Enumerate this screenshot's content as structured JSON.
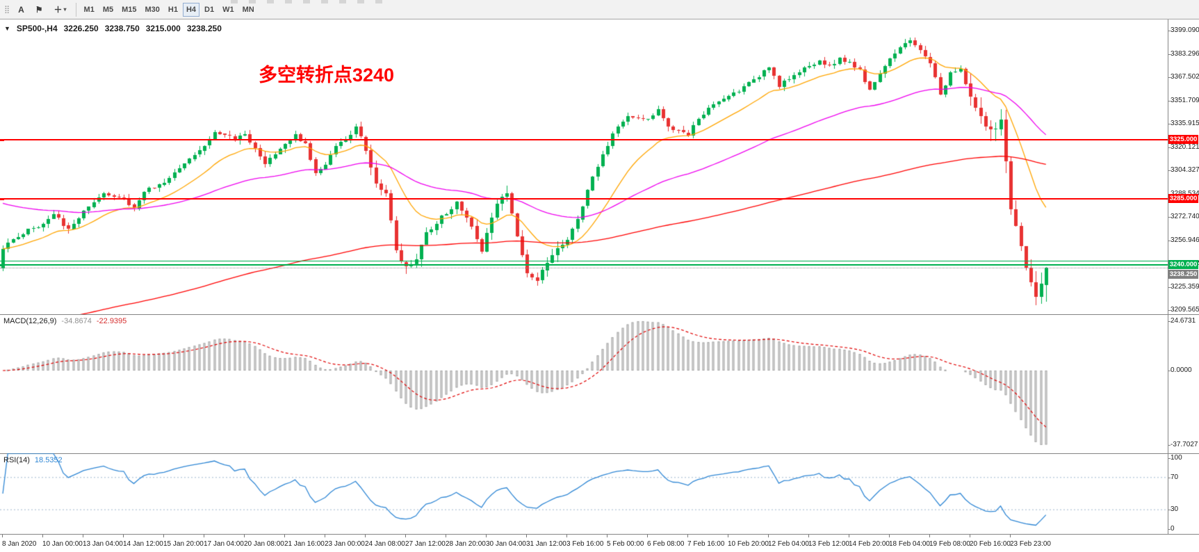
{
  "toolbar": {
    "text_tool": "A",
    "flag_icon": "flag",
    "cursor_icon": "crosshair",
    "timeframes": [
      "M1",
      "M5",
      "M15",
      "M30",
      "H1",
      "H4",
      "D1",
      "W1",
      "MN"
    ],
    "active_timeframe": "H4"
  },
  "main_panel": {
    "collapse_icon": "▼",
    "title": "SP500-,H4",
    "open": "3226.250",
    "high": "3238.750",
    "low": "3215.000",
    "close": "3238.250",
    "annotation": "多空转折点3240",
    "annotation_color": "#ff0000"
  },
  "price_axis": [
    "3399.090",
    "3383.296",
    "3367.502",
    "3351.709",
    "3335.915",
    "3320.121",
    "3304.327",
    "3288.534",
    "3272.740",
    "3256.946",
    "3241.152",
    "3225.359",
    "3209.565"
  ],
  "macd_panel": {
    "name": "MACD(12,26,9)",
    "main_value": "-34.8674",
    "signal_value": "-22.9395",
    "axis": [
      {
        "v": 24.6731,
        "label": "24.6731"
      },
      {
        "v": 0,
        "label": "0.0000"
      },
      {
        "v": -37.7027,
        "label": "-37.7027"
      }
    ]
  },
  "rsi_panel": {
    "name": "RSI(14)",
    "value": "18.5352",
    "axis": [
      {
        "v": 100,
        "label": "100"
      },
      {
        "v": 70,
        "label": "70"
      },
      {
        "v": 30,
        "label": "30"
      },
      {
        "v": 0,
        "label": "0"
      }
    ],
    "levels": [
      70,
      30
    ]
  },
  "time_axis": [
    "8 Jan 2020",
    "10 Jan 00:00",
    "13 Jan 04:00",
    "14 Jan 12:00",
    "15 Jan 20:00",
    "17 Jan 04:00",
    "20 Jan 08:00",
    "21 Jan 16:00",
    "23 Jan 00:00",
    "24 Jan 08:00",
    "27 Jan 12:00",
    "28 Jan 20:00",
    "30 Jan 04:00",
    "31 Jan 12:00",
    "3 Feb 16:00",
    "5 Feb 00:00",
    "6 Feb 08:00",
    "7 Feb 16:00",
    "10 Feb 20:00",
    "12 Feb 04:00",
    "13 Feb 12:00",
    "14 Feb 20:00",
    "18 Feb 04:00",
    "19 Feb 08:00",
    "20 Feb 16:00",
    "23 Feb 23:00"
  ],
  "chart_data": {
    "type": "candlestick",
    "symbol": "SP500-",
    "timeframe": "H4",
    "bars": 208,
    "bars_per_x_label": 8,
    "y_axis": {
      "top": 3399.09,
      "bottom": 3209.565
    },
    "last_bar": {
      "o": 3226.25,
      "h": 3238.75,
      "l": 3215.0,
      "c": 3238.25
    },
    "price_path": [
      [
        0,
        3252
      ],
      [
        4,
        3262
      ],
      [
        8,
        3268
      ],
      [
        10,
        3274
      ],
      [
        13,
        3265
      ],
      [
        16,
        3276
      ],
      [
        20,
        3288
      ],
      [
        24,
        3286
      ],
      [
        26,
        3278
      ],
      [
        28,
        3290
      ],
      [
        32,
        3296
      ],
      [
        36,
        3310
      ],
      [
        40,
        3322
      ],
      [
        42,
        3330
      ],
      [
        46,
        3326
      ],
      [
        48,
        3328
      ],
      [
        50,
        3320
      ],
      [
        52,
        3308
      ],
      [
        56,
        3322
      ],
      [
        58,
        3328
      ],
      [
        60,
        3322
      ],
      [
        62,
        3302
      ],
      [
        64,
        3308
      ],
      [
        66,
        3320
      ],
      [
        68,
        3326
      ],
      [
        70,
        3333
      ],
      [
        72,
        3318
      ],
      [
        74,
        3295
      ],
      [
        76,
        3288
      ],
      [
        78,
        3250
      ],
      [
        80,
        3238
      ],
      [
        82,
        3246
      ],
      [
        84,
        3262
      ],
      [
        88,
        3276
      ],
      [
        90,
        3284
      ],
      [
        92,
        3273
      ],
      [
        95,
        3250
      ],
      [
        98,
        3283
      ],
      [
        100,
        3287
      ],
      [
        102,
        3260
      ],
      [
        104,
        3235
      ],
      [
        106,
        3228
      ],
      [
        108,
        3242
      ],
      [
        112,
        3258
      ],
      [
        114,
        3272
      ],
      [
        116,
        3290
      ],
      [
        118,
        3308
      ],
      [
        120,
        3322
      ],
      [
        122,
        3334
      ],
      [
        124,
        3340
      ],
      [
        128,
        3338
      ],
      [
        130,
        3346
      ],
      [
        132,
        3334
      ],
      [
        136,
        3328
      ],
      [
        138,
        3340
      ],
      [
        142,
        3352
      ],
      [
        144,
        3355
      ],
      [
        146,
        3358
      ],
      [
        150,
        3368
      ],
      [
        152,
        3375
      ],
      [
        154,
        3362
      ],
      [
        158,
        3372
      ],
      [
        160,
        3376
      ],
      [
        162,
        3378
      ],
      [
        164,
        3375
      ],
      [
        166,
        3380
      ],
      [
        168,
        3378
      ],
      [
        170,
        3372
      ],
      [
        172,
        3358
      ],
      [
        174,
        3370
      ],
      [
        176,
        3380
      ],
      [
        178,
        3388
      ],
      [
        180,
        3392
      ],
      [
        182,
        3386
      ],
      [
        184,
        3378
      ],
      [
        186,
        3356
      ],
      [
        188,
        3370
      ],
      [
        190,
        3373
      ],
      [
        192,
        3355
      ],
      [
        194,
        3340
      ],
      [
        196,
        3332
      ],
      [
        198,
        3337
      ],
      [
        200,
        3278
      ],
      [
        202,
        3252
      ],
      [
        204,
        3230
      ],
      [
        205,
        3218
      ],
      [
        206,
        3226
      ],
      [
        207,
        3238
      ]
    ],
    "wick_base": 3,
    "volatility_ranges": [
      [
        70,
        110,
        5
      ],
      [
        192,
        207,
        8
      ]
    ],
    "up_color": "#00b050",
    "down_color": "#e83232",
    "moving_averages": [
      {
        "name": "fast-ma",
        "period": 16,
        "color": "#ffa500"
      },
      {
        "name": "medium-ma",
        "period": 60,
        "color": "#ee00ee",
        "seed": 3283
      },
      {
        "name": "slow-ma",
        "period": 200,
        "color": "#ff0000",
        "seed": 3196
      }
    ],
    "horizontal_levels": [
      {
        "price": 3325.0,
        "label": "3325.000",
        "color": "#ff0000",
        "thickness": 2,
        "tag": true
      },
      {
        "price": 3285.0,
        "label": "3285.000",
        "color": "#ff0000",
        "thickness": 2,
        "tag": true
      },
      {
        "price": 3242.8,
        "label": "",
        "color": "#00b050",
        "thickness": 1,
        "tag": false
      },
      {
        "price": 3240.0,
        "label": "3240.000",
        "color": "#00b050",
        "thickness": 2,
        "tag": true
      }
    ],
    "bid": {
      "price": 3238.25,
      "label": "3238.250",
      "color": "#808080"
    },
    "indicators": [
      {
        "name": "MACD",
        "params": [
          12,
          26,
          9
        ],
        "main": -34.8674,
        "signal": -22.9395
      },
      {
        "name": "RSI",
        "params": [
          14
        ],
        "value": 18.5352
      }
    ]
  }
}
